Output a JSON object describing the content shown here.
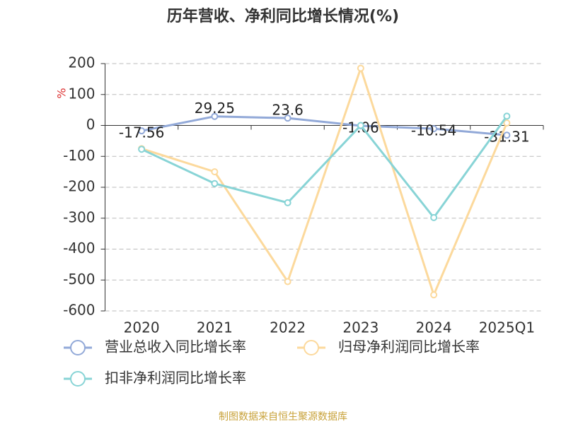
{
  "chart_data": {
    "type": "line",
    "title": "历年营收、净利同比增长情况(%)",
    "y_label": "%",
    "categories": [
      "2020",
      "2021",
      "2022",
      "2023",
      "2024",
      "2025Q1"
    ],
    "series": [
      {
        "name": "营业总收入同比增长率",
        "color": "#92a9d8",
        "values": [
          -17.56,
          29.25,
          23.6,
          -1.06,
          -10.54,
          -31.31
        ],
        "show_labels": true
      },
      {
        "name": "归母净利润同比增长率",
        "color": "#fcd99c",
        "values": [
          -75,
          -150,
          -505,
          185,
          -548,
          8
        ],
        "show_labels": false
      },
      {
        "name": "扣非净利润同比增长率",
        "color": "#88d4d6",
        "values": [
          -77,
          -188,
          -250,
          0,
          -298,
          30
        ],
        "show_labels": false
      }
    ],
    "ylim": [
      -600,
      200
    ],
    "yticks": [
      -600,
      -500,
      -400,
      -300,
      -200,
      -100,
      0,
      100,
      200
    ],
    "grid": true,
    "source": "制图数据来自恒生聚源数据库"
  }
}
